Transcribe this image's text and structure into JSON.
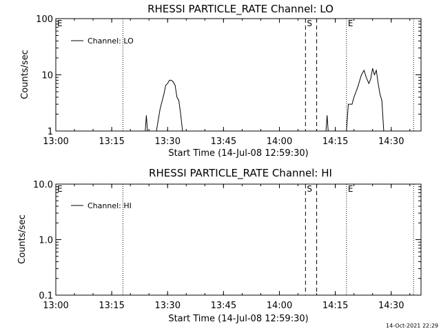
{
  "footer": "14-Oct-2021 22:29",
  "chart_data": [
    {
      "type": "line",
      "title": "RHESSI PARTICLE_RATE Channel: LO",
      "xlabel": "Start Time (14-Jul-08 12:59:30)",
      "ylabel": "Counts/sec",
      "yscale": "log",
      "ylim": [
        1,
        100
      ],
      "xlim": [
        "13:00",
        "14:38"
      ],
      "x_ticks": [
        "13:00",
        "13:15",
        "13:30",
        "13:45",
        "14:00",
        "14:15",
        "14:30"
      ],
      "y_ticks": [
        "1",
        "10",
        "100"
      ],
      "legend": [
        "Channel: LO"
      ],
      "legend_position": "top-left",
      "markers": [
        {
          "label": "E",
          "time": "13:00"
        },
        {
          "label": "S",
          "time": "14:07"
        },
        {
          "label": "E",
          "time": "14:18"
        }
      ],
      "dotted_lines": [
        "13:18",
        "14:18",
        "14:36"
      ],
      "dashed_lines": [
        "14:07",
        "14:10"
      ],
      "series": [
        {
          "name": "Channel: LO",
          "segments": [
            [
              [
                "13:24",
                1
              ],
              [
                "13:24.3",
                1.9
              ],
              [
                "13:24.6",
                1
              ]
            ],
            [
              [
                "13:27",
                1
              ],
              [
                "13:28",
                2.5
              ],
              [
                "13:29",
                4.5
              ],
              [
                "13:29.5",
                6.5
              ],
              [
                "13:30",
                7
              ],
              [
                "13:30.5",
                8
              ],
              [
                "13:31",
                8
              ],
              [
                "13:31.5",
                7.5
              ],
              [
                "13:32",
                6.5
              ],
              [
                "13:32.5",
                4
              ],
              [
                "13:33",
                3.5
              ],
              [
                "13:33.5",
                2
              ],
              [
                "13:34",
                1
              ]
            ],
            [
              [
                "14:12.5",
                1
              ],
              [
                "14:12.8",
                1.9
              ],
              [
                "14:13.1",
                1
              ]
            ],
            [
              [
                "14:18",
                1
              ],
              [
                "14:18.5",
                3
              ],
              [
                "14:19.5",
                3
              ],
              [
                "14:20",
                4
              ],
              [
                "14:21",
                6
              ],
              [
                "14:22",
                10
              ],
              [
                "14:22.7",
                12
              ],
              [
                "14:23.3",
                9
              ],
              [
                "14:24",
                7
              ],
              [
                "14:24.5",
                8.5
              ],
              [
                "14:25",
                13
              ],
              [
                "14:25.5",
                10
              ],
              [
                "14:26",
                12
              ],
              [
                "14:26.5",
                7
              ],
              [
                "14:27",
                4.5
              ],
              [
                "14:27.5",
                3.5
              ],
              [
                "14:28",
                1
              ]
            ]
          ]
        }
      ]
    },
    {
      "type": "line",
      "title": "RHESSI PARTICLE_RATE Channel: HI",
      "xlabel": "Start Time (14-Jul-08 12:59:30)",
      "ylabel": "Counts/sec",
      "yscale": "log",
      "ylim": [
        0.1,
        10
      ],
      "xlim": [
        "13:00",
        "14:38"
      ],
      "x_ticks": [
        "13:00",
        "13:15",
        "13:30",
        "13:45",
        "14:00",
        "14:15",
        "14:30"
      ],
      "y_ticks": [
        "0.1",
        "1.0",
        "10.0"
      ],
      "legend": [
        "Channel: HI"
      ],
      "legend_position": "top-left",
      "markers": [
        {
          "label": "E",
          "time": "13:00"
        },
        {
          "label": "S",
          "time": "14:07"
        },
        {
          "label": "E",
          "time": "14:18"
        }
      ],
      "dotted_lines": [
        "13:18",
        "14:18",
        "14:36"
      ],
      "dashed_lines": [
        "14:07",
        "14:10"
      ],
      "series": [
        {
          "name": "Channel: HI",
          "segments": []
        }
      ]
    }
  ]
}
